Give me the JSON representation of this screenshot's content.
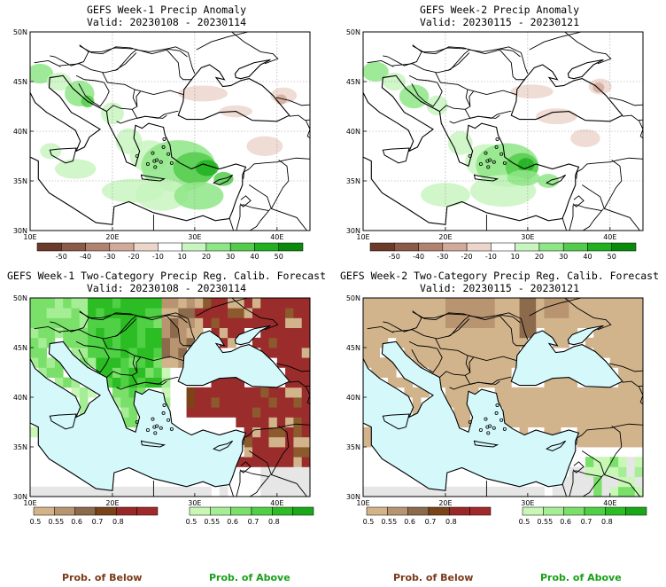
{
  "panels": [
    {
      "id": "w1-anom",
      "title": "GEFS Week-1 Precip Anomaly",
      "valid": "Valid: 20230108 - 20230114",
      "type": "anomaly"
    },
    {
      "id": "w2-anom",
      "title": "GEFS Week-2 Precip Anomaly",
      "valid": "Valid: 20230115 - 20230121",
      "type": "anomaly"
    },
    {
      "id": "w1-prob",
      "title": "GEFS Week-1 Two-Category Precip Reg. Calib. Forecast",
      "valid": "Valid: 20230108 - 20230114",
      "type": "prob_w1"
    },
    {
      "id": "w2-prob",
      "title": "GEFS Week-2 Two-Category Precip Reg. Calib. Forecast",
      "valid": "Valid: 20230115 - 20230121",
      "type": "prob_w2"
    }
  ],
  "axes": {
    "lat_labels": [
      "50N",
      "45N",
      "40N",
      "35N",
      "30N"
    ],
    "lon_labels": [
      "10E",
      "20E",
      "30E",
      "40E"
    ]
  },
  "anomaly_colorbar": {
    "labels": [
      "-50",
      "-40",
      "-30",
      "-20",
      "-10",
      "10",
      "20",
      "30",
      "40",
      "50"
    ],
    "colors": [
      "#6b3a2a",
      "#8c5a48",
      "#b28270",
      "#d2aa9a",
      "#ecd6cc",
      "#ffffff",
      "#c8f5c0",
      "#8ee686",
      "#52cc4a",
      "#20b020",
      "#0a8a0a"
    ]
  },
  "prob_below_colorbar": {
    "labels": [
      "0.5",
      "0.55",
      "0.6",
      "0.7",
      "0.8"
    ],
    "colors": [
      "#d2b488",
      "#b89470",
      "#8c6a4c",
      "#7a4418",
      "#9a2828",
      "#a02a2a"
    ]
  },
  "prob_above_colorbar": {
    "labels": [
      "0.5",
      "0.55",
      "0.6",
      "0.7",
      "0.8"
    ],
    "colors": [
      "#c8f7b6",
      "#a6ee96",
      "#7ae06a",
      "#4fd045",
      "#2cbc24",
      "#18a818"
    ]
  },
  "footer": {
    "below": "Prob. of Below",
    "above": "Prob. of Above"
  },
  "colors": {
    "sea": "#d5f8fb",
    "land_gray": "#e6e6e6",
    "below_brown": "#d2b48c",
    "below_red": "#9b2c2c",
    "above_green": "#2cc82c",
    "below_label": "#7a3a1a",
    "above_label": "#1aa01a"
  }
}
